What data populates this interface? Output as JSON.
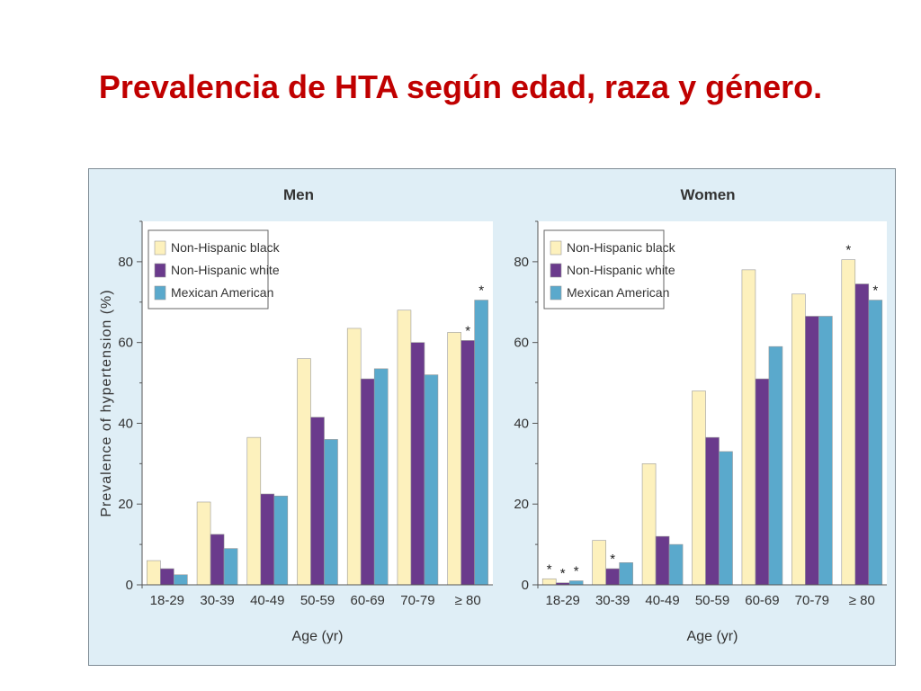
{
  "slide": {
    "title": "Prevalencia de HTA según edad, raza y género."
  },
  "colors": {
    "panel_background": "#dfeef6",
    "plot_background": "#ffffff",
    "Non-Hispanic black": "#fdf1bd",
    "Non-Hispanic white": "#6a3a8c",
    "Mexican American": "#5aa9cc"
  },
  "chart_data": [
    {
      "type": "bar",
      "title": "Men",
      "xlabel": "Age (yr)",
      "ylabel": "Prevalence of hypertension (%)",
      "ylim": [
        0,
        90
      ],
      "yticks": [
        0,
        20,
        40,
        60,
        80
      ],
      "grid": false,
      "legend": "top-left",
      "categories": [
        "18-29",
        "30-39",
        "40-49",
        "50-59",
        "60-69",
        "70-79",
        "≥ 80"
      ],
      "series": [
        {
          "name": "Non-Hispanic black",
          "values": [
            6,
            20.5,
            36.5,
            56,
            63.5,
            68,
            62.5
          ],
          "stars": []
        },
        {
          "name": "Non-Hispanic white",
          "values": [
            4,
            12.5,
            22.5,
            41.5,
            51,
            60,
            60.5
          ],
          "stars": [
            6
          ]
        },
        {
          "name": "Mexican American",
          "values": [
            2.5,
            9,
            22,
            36,
            53.5,
            52,
            70.5
          ],
          "stars": [
            6
          ]
        }
      ]
    },
    {
      "type": "bar",
      "title": "Women",
      "xlabel": "Age (yr)",
      "ylabel": "",
      "ylim": [
        0,
        90
      ],
      "yticks": [
        0,
        20,
        40,
        60,
        80
      ],
      "grid": false,
      "legend": "top-left",
      "categories": [
        "18-29",
        "30-39",
        "40-49",
        "50-59",
        "60-69",
        "70-79",
        "≥ 80"
      ],
      "series": [
        {
          "name": "Non-Hispanic black",
          "values": [
            1.5,
            11,
            30,
            48,
            78,
            72,
            80.5
          ],
          "stars": [
            0,
            6
          ]
        },
        {
          "name": "Non-Hispanic white",
          "values": [
            0.5,
            4,
            12,
            36.5,
            51,
            66.5,
            74.5
          ],
          "stars": [
            0,
            1
          ]
        },
        {
          "name": "Mexican American",
          "values": [
            1,
            5.5,
            10,
            33,
            59,
            66.5,
            70.5
          ],
          "stars": [
            0,
            6
          ]
        }
      ]
    }
  ]
}
